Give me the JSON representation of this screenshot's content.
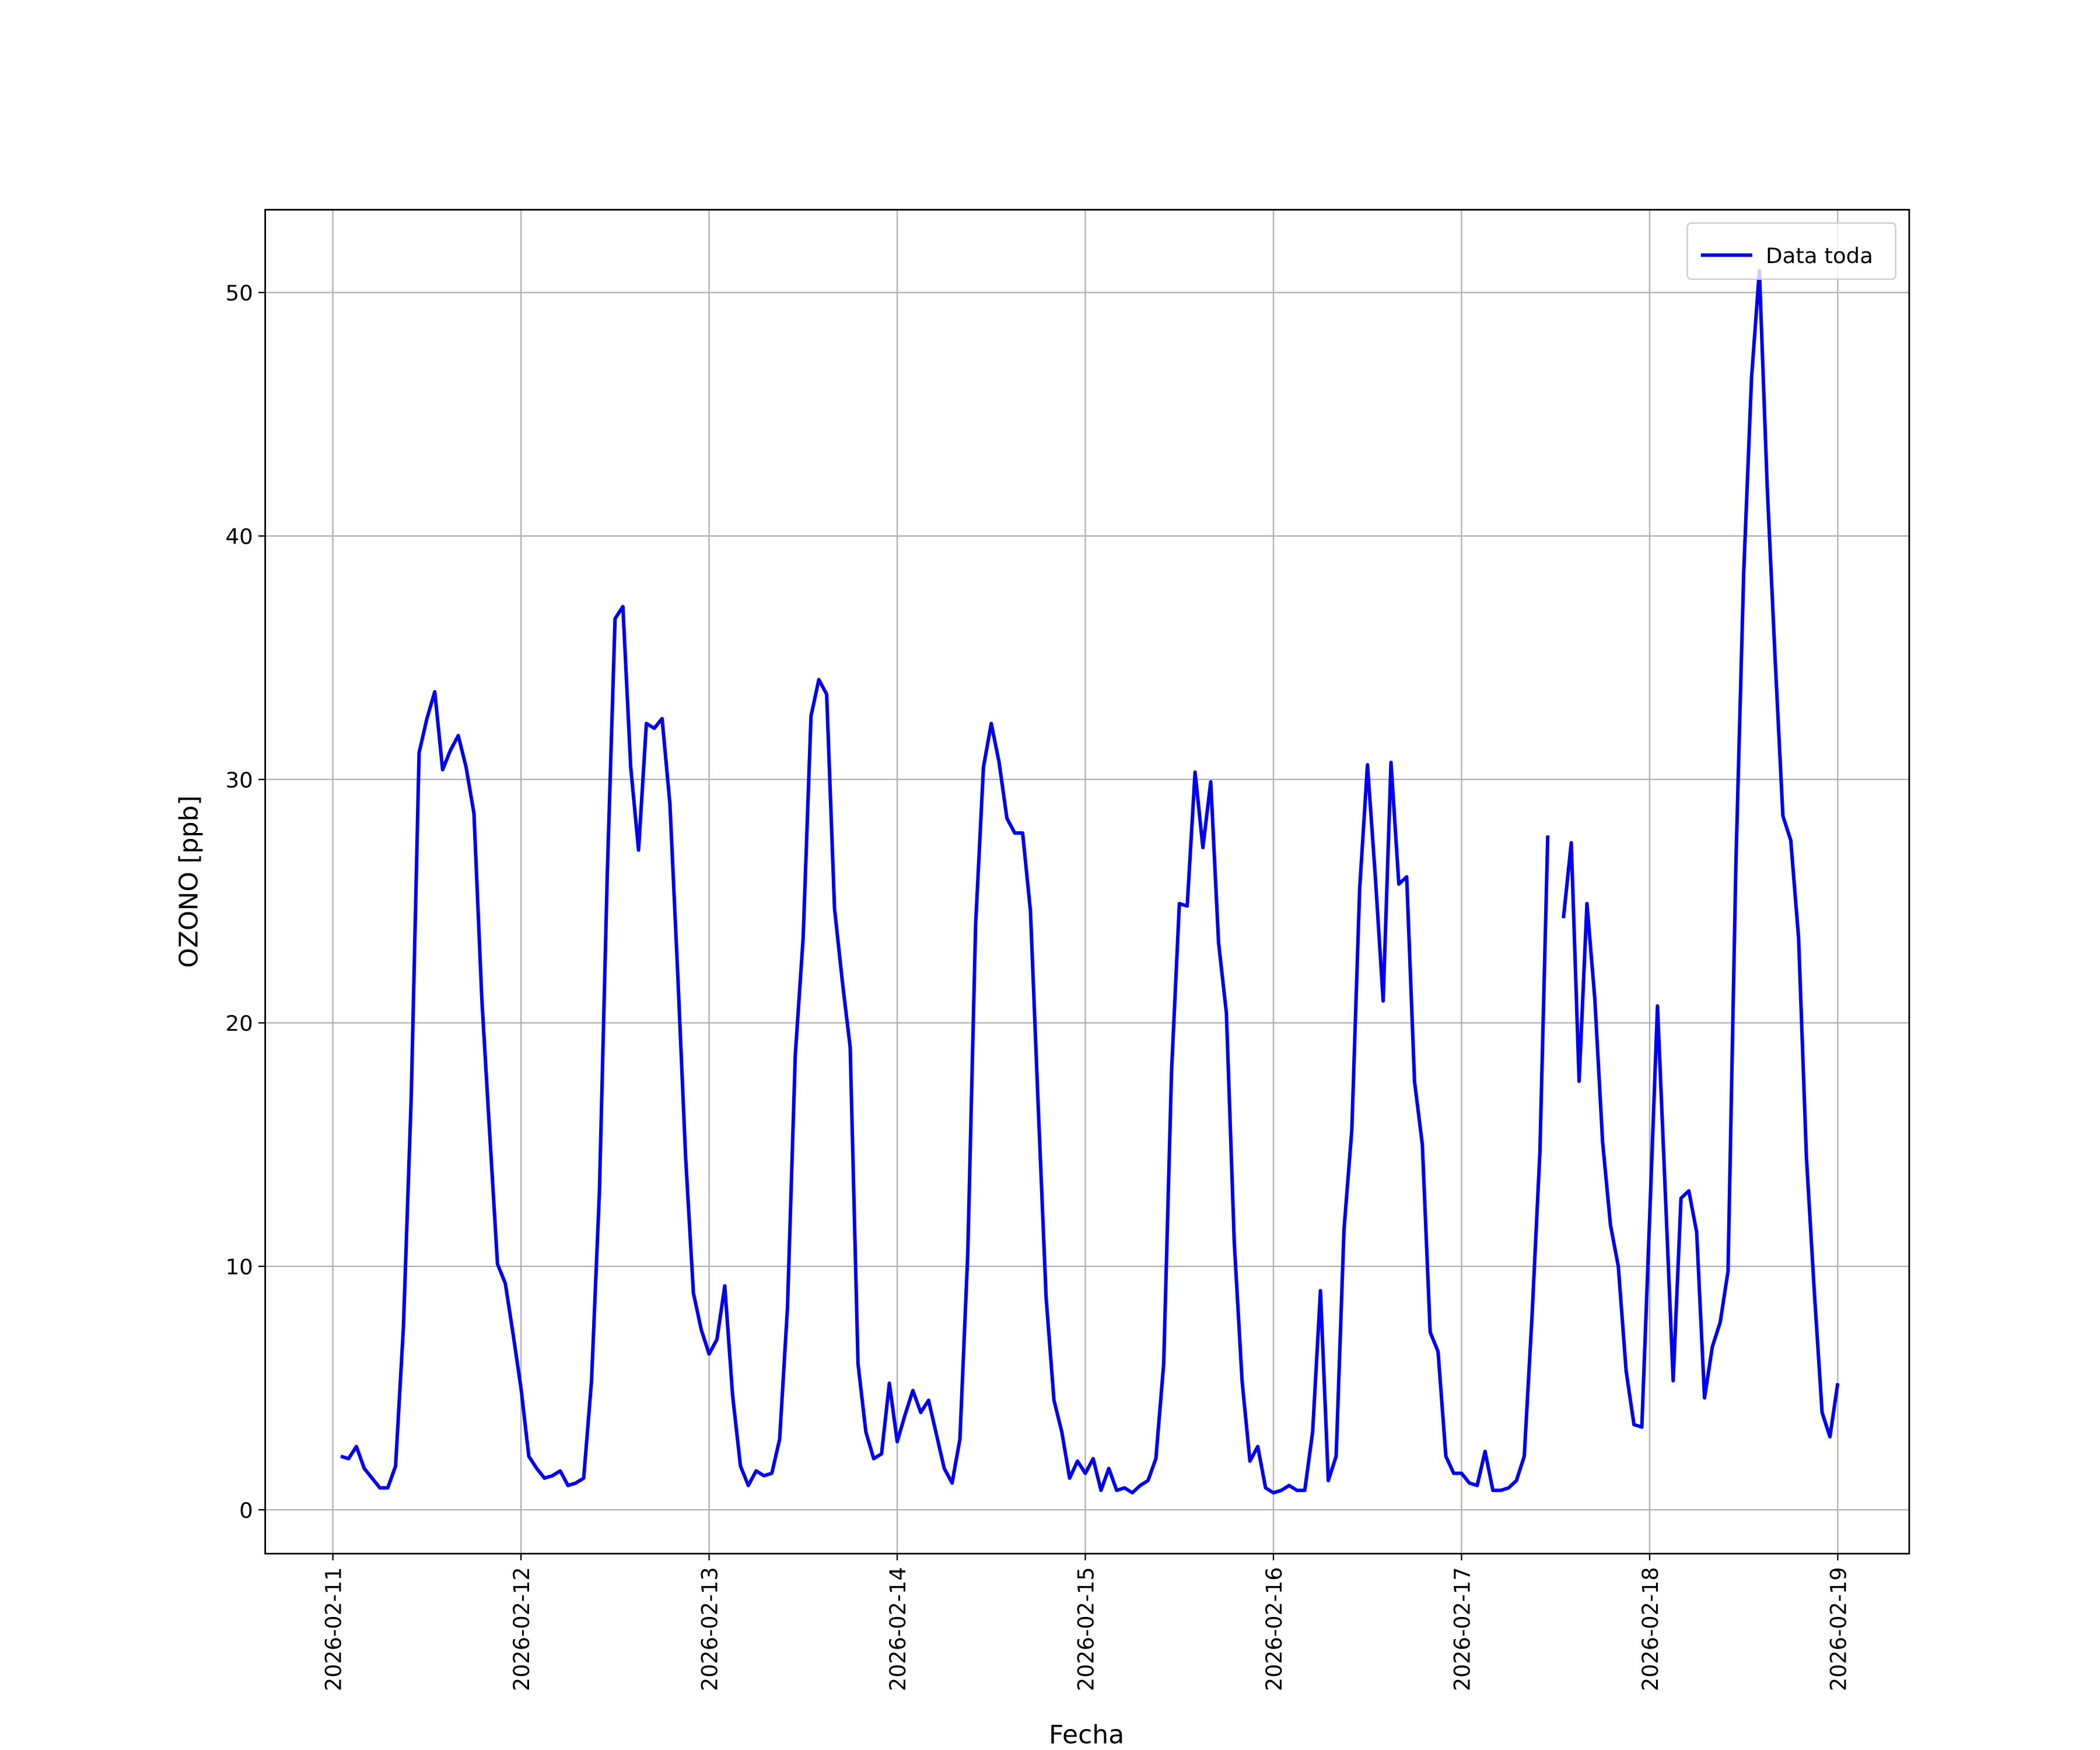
{
  "chart_data": {
    "type": "line",
    "xlabel": "Fecha",
    "ylabel": "OZONO [ppb]",
    "xlim": [
      "2026-02-10 15:22",
      "2026-02-19 09:07"
    ],
    "ylim": [
      -1.8,
      53.4
    ],
    "xticks": [
      "2026-02-11",
      "2026-02-12",
      "2026-02-13",
      "2026-02-14",
      "2026-02-15",
      "2026-02-16",
      "2026-02-17",
      "2026-02-18",
      "2026-02-19"
    ],
    "yticks": [
      0,
      10,
      20,
      30,
      40,
      50
    ],
    "grid": true,
    "legend": "upper right",
    "x": [
      "2026-02-11 01:00",
      "2026-02-11 02:00",
      "2026-02-11 03:00",
      "2026-02-11 04:00",
      "2026-02-11 05:00",
      "2026-02-11 06:00",
      "2026-02-11 07:00",
      "2026-02-11 08:00",
      "2026-02-11 09:00",
      "2026-02-11 10:00",
      "2026-02-11 11:00",
      "2026-02-11 12:00",
      "2026-02-11 13:00",
      "2026-02-11 14:00",
      "2026-02-11 15:00",
      "2026-02-11 16:00",
      "2026-02-11 17:00",
      "2026-02-11 18:00",
      "2026-02-11 19:00",
      "2026-02-11 20:00",
      "2026-02-11 21:00",
      "2026-02-11 22:00",
      "2026-02-11 23:00",
      "2026-02-12 00:00",
      "2026-02-12 01:00",
      "2026-02-12 02:00",
      "2026-02-12 03:00",
      "2026-02-12 04:00",
      "2026-02-12 05:00",
      "2026-02-12 06:00",
      "2026-02-12 07:00",
      "2026-02-12 08:00",
      "2026-02-12 09:00",
      "2026-02-12 10:00",
      "2026-02-12 11:00",
      "2026-02-12 12:00",
      "2026-02-12 13:00",
      "2026-02-12 14:00",
      "2026-02-12 15:00",
      "2026-02-12 16:00",
      "2026-02-12 17:00",
      "2026-02-12 18:00",
      "2026-02-12 19:00",
      "2026-02-12 20:00",
      "2026-02-12 21:00",
      "2026-02-12 22:00",
      "2026-02-12 23:00",
      "2026-02-13 00:00",
      "2026-02-13 01:00",
      "2026-02-13 02:00",
      "2026-02-13 03:00",
      "2026-02-13 04:00",
      "2026-02-13 05:00",
      "2026-02-13 06:00",
      "2026-02-13 07:00",
      "2026-02-13 08:00",
      "2026-02-13 09:00",
      "2026-02-13 10:00",
      "2026-02-13 11:00",
      "2026-02-13 12:00",
      "2026-02-13 13:00",
      "2026-02-13 14:00",
      "2026-02-13 15:00",
      "2026-02-13 16:00",
      "2026-02-13 17:00",
      "2026-02-13 18:00",
      "2026-02-13 19:00",
      "2026-02-13 20:00",
      "2026-02-13 21:00",
      "2026-02-13 22:00",
      "2026-02-13 23:00",
      "2026-02-14 00:00",
      "2026-02-14 01:00",
      "2026-02-14 02:00",
      "2026-02-14 03:00",
      "2026-02-14 04:00",
      "2026-02-14 05:00",
      "2026-02-14 06:00",
      "2026-02-14 07:00",
      "2026-02-14 08:00",
      "2026-02-14 09:00",
      "2026-02-14 10:00",
      "2026-02-14 11:00",
      "2026-02-14 12:00",
      "2026-02-14 13:00",
      "2026-02-14 14:00",
      "2026-02-14 15:00",
      "2026-02-14 16:00",
      "2026-02-14 17:00",
      "2026-02-14 18:00",
      "2026-02-14 19:00",
      "2026-02-14 20:00",
      "2026-02-14 21:00",
      "2026-02-14 22:00",
      "2026-02-14 23:00",
      "2026-02-15 00:00",
      "2026-02-15 01:00",
      "2026-02-15 02:00",
      "2026-02-15 03:00",
      "2026-02-15 04:00",
      "2026-02-15 05:00",
      "2026-02-15 06:00",
      "2026-02-15 07:00",
      "2026-02-15 08:00",
      "2026-02-15 09:00",
      "2026-02-15 10:00",
      "2026-02-15 11:00",
      "2026-02-15 12:00",
      "2026-02-15 13:00",
      "2026-02-15 14:00",
      "2026-02-15 15:00",
      "2026-02-15 16:00",
      "2026-02-15 17:00",
      "2026-02-15 18:00",
      "2026-02-15 19:00",
      "2026-02-15 20:00",
      "2026-02-15 21:00",
      "2026-02-15 22:00",
      "2026-02-15 23:00",
      "2026-02-16 00:00",
      "2026-02-16 01:00",
      "2026-02-16 02:00",
      "2026-02-16 03:00",
      "2026-02-16 04:00",
      "2026-02-16 05:00",
      "2026-02-16 06:00",
      "2026-02-16 07:00",
      "2026-02-16 08:00",
      "2026-02-16 09:00",
      "2026-02-16 10:00",
      "2026-02-16 11:00",
      "2026-02-16 12:00",
      "2026-02-16 13:00",
      "2026-02-16 14:00",
      "2026-02-16 15:00",
      "2026-02-16 16:00",
      "2026-02-16 17:00",
      "2026-02-16 18:00",
      "2026-02-16 19:00",
      "2026-02-16 20:00",
      "2026-02-16 21:00",
      "2026-02-16 22:00",
      "2026-02-16 23:00",
      "2026-02-17 00:00",
      "2026-02-17 01:00",
      "2026-02-17 02:00",
      "2026-02-17 03:00",
      "2026-02-17 04:00",
      "2026-02-17 05:00",
      "2026-02-17 06:00",
      "2026-02-17 07:00",
      "2026-02-17 08:00",
      "2026-02-17 09:00",
      "2026-02-17 10:00",
      "2026-02-17 11:00",
      "2026-02-17 12:00",
      "2026-02-17 13:00",
      "2026-02-17 14:00",
      "2026-02-17 15:00",
      "2026-02-17 16:00",
      "2026-02-17 17:00",
      "2026-02-17 18:00",
      "2026-02-17 19:00",
      "2026-02-17 20:00",
      "2026-02-17 21:00",
      "2026-02-17 22:00",
      "2026-02-17 23:00",
      "2026-02-18 00:00",
      "2026-02-18 01:00",
      "2026-02-18 02:00",
      "2026-02-18 03:00",
      "2026-02-18 04:00",
      "2026-02-18 05:00",
      "2026-02-18 06:00",
      "2026-02-18 07:00",
      "2026-02-18 08:00",
      "2026-02-18 09:00",
      "2026-02-18 10:00",
      "2026-02-18 11:00",
      "2026-02-18 12:00",
      "2026-02-18 13:00",
      "2026-02-18 14:00",
      "2026-02-18 15:00",
      "2026-02-18 16:00",
      "2026-02-18 17:00",
      "2026-02-18 18:00",
      "2026-02-18 19:00",
      "2026-02-18 20:00",
      "2026-02-18 21:00",
      "2026-02-18 22:00",
      "2026-02-18 23:00",
      "2026-02-19 00:00"
    ],
    "series": [
      {
        "name": "Data toda",
        "color": "#0000ff",
        "values": [
          2.2,
          2.1,
          2.6,
          1.7,
          1.3,
          0.9,
          0.9,
          1.8,
          7.5,
          17,
          31.1,
          32.5,
          33.6,
          30.4,
          31.2,
          31.8,
          30.5,
          28.6,
          21,
          15.5,
          10.1,
          9.3,
          7.2,
          5,
          2.2,
          1.7,
          1.3,
          1.4,
          1.6,
          1.0,
          1.1,
          1.3,
          5.3,
          13,
          26,
          36.6,
          37.1,
          30.5,
          27.1,
          32.3,
          32.1,
          32.5,
          29,
          22,
          14.5,
          8.9,
          7.4,
          6.4,
          7,
          9.2,
          4.7,
          1.8,
          1,
          1.6,
          1.4,
          1.5,
          2.9,
          8.3,
          18.7,
          23.5,
          32.6,
          34.1,
          33.5,
          24.7,
          21.7,
          19,
          6,
          3.2,
          2.1,
          2.3,
          5.2,
          2.8,
          3.9,
          4.9,
          4.0,
          4.5,
          3.1,
          1.7,
          1.1,
          2.9,
          10.5,
          24,
          30.5,
          32.3,
          30.7,
          28.4,
          27.8,
          27.8,
          24.6,
          16.5,
          8.7,
          4.5,
          3.2,
          1.3,
          2,
          1.5,
          2.1,
          0.8,
          1.7,
          0.8,
          0.9,
          0.7,
          1,
          1.2,
          2.1,
          6,
          18,
          24.9,
          24.8,
          30.3,
          27.2,
          29.9,
          23.3,
          20.4,
          11,
          5.3,
          2,
          2.6,
          0.9,
          0.7,
          0.8,
          1,
          0.8,
          0.8,
          3.2,
          9,
          1.2,
          2.2,
          11.5,
          15.6,
          25.5,
          30.6,
          26,
          20.9,
          30.7,
          25.7,
          26,
          17.6,
          15,
          7.3,
          6.5,
          2.2,
          1.5,
          1.5,
          1.1,
          1,
          2.4,
          0.8,
          0.8,
          0.9,
          1.2,
          2.2,
          8,
          14.7,
          27.7,
          null,
          24.3,
          27.4,
          17.6,
          24.9,
          21,
          15.1,
          11.7,
          10,
          5.7,
          3.5,
          3.4,
          12,
          20.7,
          13,
          5.3,
          12.8,
          13.1,
          11.4,
          4.6,
          6.7,
          7.7,
          9.8,
          26.5,
          38.5,
          46.5,
          50.9,
          42,
          35,
          28.5,
          27.5,
          23.5,
          14.5,
          9,
          4,
          3,
          5.2
        ]
      }
    ]
  }
}
